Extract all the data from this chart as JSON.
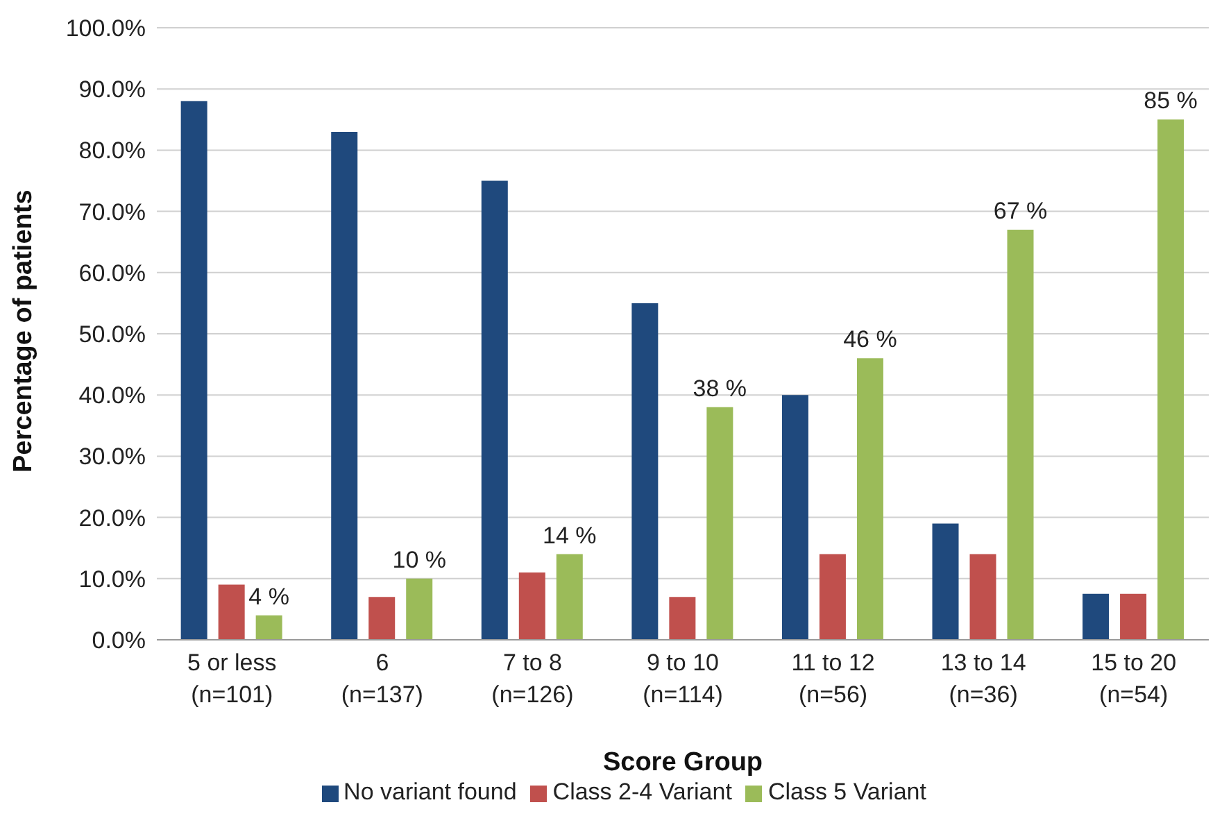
{
  "chart_data": {
    "type": "bar",
    "xlabel": "Score Group",
    "ylabel": "Percentage of patients",
    "categories": [
      "5 or less\n(n=101)",
      "6\n(n=137)",
      "7 to 8\n(n=126)",
      "9 to 10\n(n=114)",
      "11 to 12\n(n=56)",
      "13 to 14\n(n=36)",
      "15 to 20\n(n=54)"
    ],
    "series": [
      {
        "name": "No variant found",
        "color": "#1f497d",
        "values": [
          88,
          83,
          75,
          55,
          40,
          19,
          7.5
        ]
      },
      {
        "name": "Class 2-4 Variant",
        "color": "#c0504d",
        "values": [
          9,
          7,
          11,
          7,
          14,
          14,
          7.5
        ]
      },
      {
        "name": "Class 5 Variant",
        "color": "#9bbb59",
        "values": [
          4,
          10,
          14,
          38,
          46,
          67,
          85
        ],
        "value_labels": [
          "4 %",
          "10 %",
          "14 %",
          "38 %",
          "46 %",
          "67 %",
          "85 %"
        ]
      }
    ],
    "ylim": [
      0,
      100
    ],
    "yticks": [
      {
        "value": 0,
        "label": "0.0%"
      },
      {
        "value": 10,
        "label": "10.0%"
      },
      {
        "value": 20,
        "label": "20.0%"
      },
      {
        "value": 30,
        "label": "30.0%"
      },
      {
        "value": 40,
        "label": "40.0%"
      },
      {
        "value": 50,
        "label": "50.0%"
      },
      {
        "value": 60,
        "label": "60.0%"
      },
      {
        "value": 70,
        "label": "70.0%"
      },
      {
        "value": 80,
        "label": "80.0%"
      },
      {
        "value": 90,
        "label": "90.0%"
      },
      {
        "value": 100,
        "label": "100.0%"
      }
    ],
    "grid": "y",
    "legend": "bottom"
  }
}
